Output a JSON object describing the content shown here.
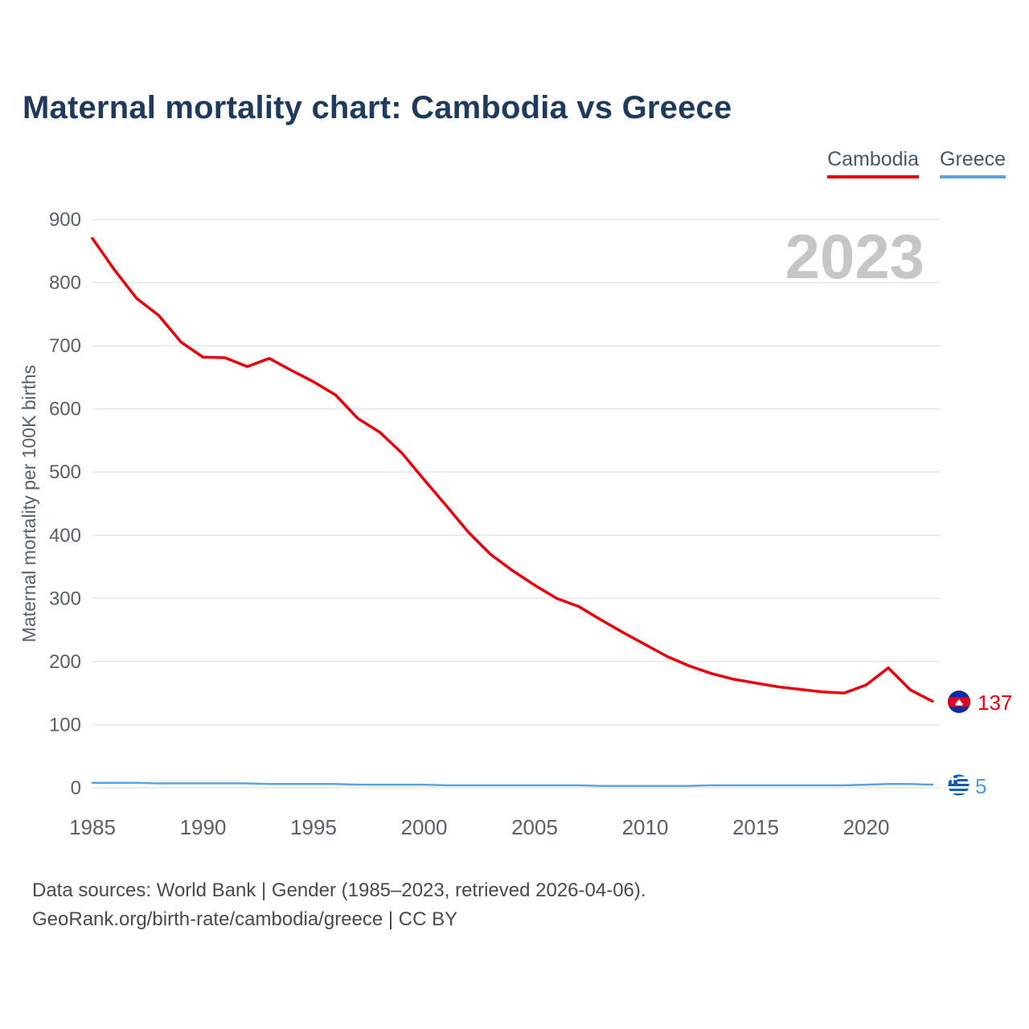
{
  "title": "Maternal mortality chart: Cambodia vs Greece",
  "watermark": "2023",
  "legend": [
    {
      "label": "Cambodia",
      "color": "#e8000d"
    },
    {
      "label": "Greece",
      "color": "#5ba3e0"
    }
  ],
  "footer": {
    "line1": "Data sources: World Bank | Gender (1985–2023, retrieved 2026-04-06).",
    "line2": "GeoRank.org/birth-rate/cambodia/greece | CC BY"
  },
  "chart_data": {
    "type": "line",
    "title": "Maternal mortality chart: Cambodia vs Greece",
    "xlabel": "",
    "ylabel": "Maternal mortality per 100K births",
    "xlim": [
      1985,
      2023
    ],
    "ylim": [
      0,
      900
    ],
    "xticks": [
      1985,
      1990,
      1995,
      2000,
      2005,
      2010,
      2015,
      2020
    ],
    "yticks": [
      0,
      100,
      200,
      300,
      400,
      500,
      600,
      700,
      800,
      900
    ],
    "grid": "horizontal",
    "legend_position": "top-right",
    "x": [
      1985,
      1986,
      1987,
      1988,
      1989,
      1990,
      1991,
      1992,
      1993,
      1994,
      1995,
      1996,
      1997,
      1998,
      1999,
      2000,
      2001,
      2002,
      2003,
      2004,
      2005,
      2006,
      2007,
      2008,
      2009,
      2010,
      2011,
      2012,
      2013,
      2014,
      2015,
      2016,
      2017,
      2018,
      2019,
      2020,
      2021,
      2022,
      2023
    ],
    "series": [
      {
        "name": "Cambodia",
        "color": "#e8000d",
        "icon": "cambodia-flag-icon",
        "end_label": "137",
        "values": [
          870,
          820,
          775,
          748,
          706,
          682,
          681,
          667,
          680,
          661,
          643,
          622,
          585,
          563,
          530,
          488,
          447,
          405,
          370,
          344,
          321,
          300,
          287,
          266,
          246,
          227,
          208,
          193,
          181,
          172,
          166,
          160,
          156,
          152,
          150,
          163,
          190,
          155,
          137
        ]
      },
      {
        "name": "Greece",
        "color": "#5ba3e0",
        "icon": "greece-flag-icon",
        "end_label": "5",
        "values": [
          8,
          8,
          8,
          7,
          7,
          7,
          7,
          7,
          6,
          6,
          6,
          6,
          5,
          5,
          5,
          5,
          4,
          4,
          4,
          4,
          4,
          4,
          4,
          3,
          3,
          3,
          3,
          3,
          4,
          4,
          4,
          4,
          4,
          4,
          4,
          5,
          6,
          6,
          5
        ]
      }
    ]
  }
}
